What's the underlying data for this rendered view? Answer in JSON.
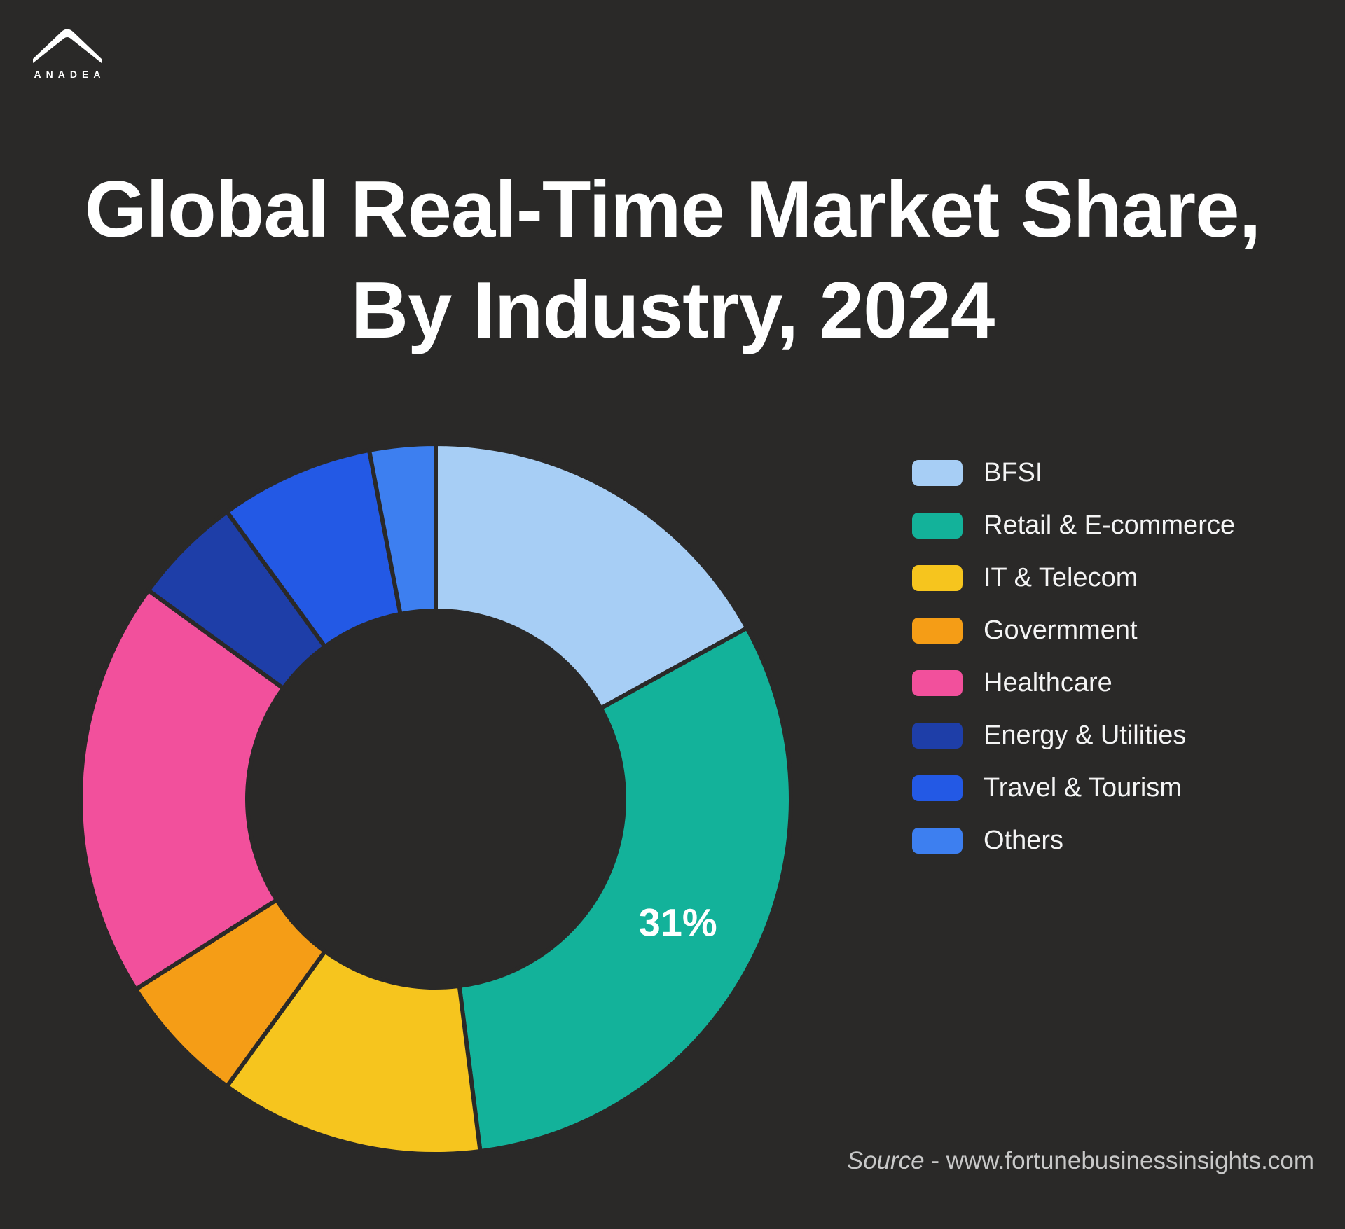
{
  "brand": {
    "logo_text": "ANADEA"
  },
  "title": {
    "line1": "Global Real-Time Market Share,",
    "line2": "By Industry, 2024"
  },
  "source": {
    "prefix": "Source",
    "separator": " - ",
    "url": "www.fortunebusinessinsights.com"
  },
  "colors": {
    "background": "#2A2928",
    "title_text": "#FFFFFF",
    "legend_text": "#F4F4F4",
    "source_text": "#C8C8C8"
  },
  "chart_data": {
    "type": "pie",
    "subtype": "donut",
    "title": "Global Real-Time Market Share, By Industry, 2024",
    "unit": "%",
    "start_angle_deg": 0,
    "direction": "clockwise",
    "legend_position": "right",
    "inner_radius_ratio": 0.53,
    "segments": [
      {
        "label": "BFSI",
        "value": 17,
        "color": "#A7CEF5",
        "data_label": ""
      },
      {
        "label": "Retail & E-commerce",
        "value": 31,
        "color": "#13B29A",
        "data_label": "31%"
      },
      {
        "label": "IT & Telecom",
        "value": 12,
        "color": "#F6C51E",
        "data_label": ""
      },
      {
        "label": "Govermment",
        "value": 6,
        "color": "#F59D16",
        "data_label": ""
      },
      {
        "label": "Healthcare",
        "value": 19,
        "color": "#F2509C",
        "data_label": ""
      },
      {
        "label": "Energy & Utilities",
        "value": 5,
        "color": "#1E3EA8",
        "data_label": ""
      },
      {
        "label": "Travel & Tourism",
        "value": 7,
        "color": "#2359E5",
        "data_label": ""
      },
      {
        "label": "Others",
        "value": 3,
        "color": "#3D7FF0",
        "data_label": ""
      }
    ]
  }
}
